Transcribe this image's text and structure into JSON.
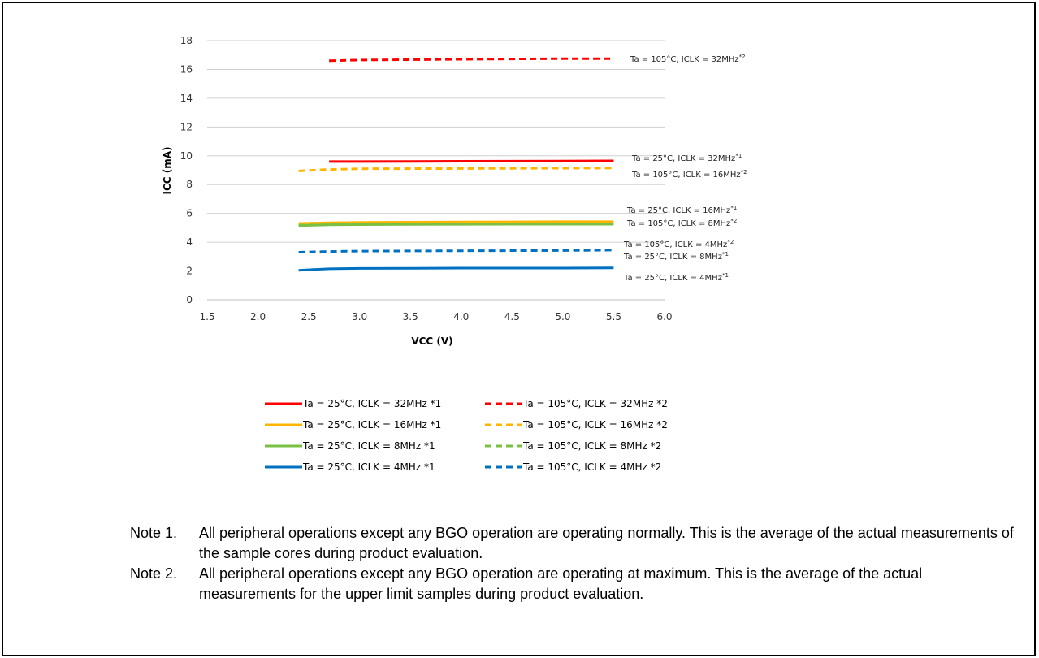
{
  "chart_data": {
    "type": "line",
    "title": "",
    "xlabel": "VCC (V)",
    "ylabel": "ICC (mA)",
    "xlim": [
      1.5,
      6.0
    ],
    "ylim": [
      0,
      18
    ],
    "xticks": [
      "1.5",
      "2.0",
      "2.5",
      "3.0",
      "3.5",
      "4.0",
      "4.5",
      "5.0",
      "5.5",
      "6.0"
    ],
    "yticks": [
      "0",
      "2",
      "4",
      "6",
      "8",
      "10",
      "12",
      "14",
      "16",
      "18"
    ],
    "grid": "horizontal",
    "legend_position": "bottom",
    "series": [
      {
        "name": "Ta = 25°C, ICLK = 32MHz *1",
        "color": "#ff0000",
        "dash": false,
        "x": [
          2.7,
          3.0,
          4.0,
          5.0,
          5.5
        ],
        "y": [
          9.6,
          9.6,
          9.62,
          9.64,
          9.65
        ]
      },
      {
        "name": "Ta = 105°C, ICLK = 32MHz *2",
        "color": "#ff0000",
        "dash": true,
        "x": [
          2.7,
          3.0,
          4.0,
          5.0,
          5.5
        ],
        "y": [
          16.6,
          16.65,
          16.7,
          16.75,
          16.75
        ]
      },
      {
        "name": "Ta = 25°C, ICLK = 16MHz *1",
        "color": "#ffb400",
        "dash": false,
        "x": [
          2.4,
          2.7,
          3.0,
          4.0,
          5.0,
          5.5
        ],
        "y": [
          5.3,
          5.35,
          5.38,
          5.4,
          5.42,
          5.42
        ]
      },
      {
        "name": "Ta = 105°C, ICLK = 16MHz *2",
        "color": "#ffb400",
        "dash": true,
        "x": [
          2.4,
          2.7,
          3.0,
          4.0,
          5.0,
          5.5
        ],
        "y": [
          8.95,
          9.05,
          9.1,
          9.12,
          9.14,
          9.15
        ]
      },
      {
        "name": "Ta = 25°C, ICLK = 8MHz *1",
        "color": "#7ac143",
        "dash": false,
        "x": [
          2.4,
          2.7,
          3.0,
          4.0,
          5.0,
          5.5
        ],
        "y": [
          5.15,
          5.2,
          5.22,
          5.24,
          5.25,
          5.25
        ]
      },
      {
        "name": "Ta = 105°C, ICLK = 8MHz *2",
        "color": "#7ac143",
        "dash": true,
        "x": [
          2.4,
          2.7,
          3.0,
          4.0,
          5.0,
          5.5
        ],
        "y": [
          5.18,
          5.22,
          5.25,
          5.27,
          5.28,
          5.28
        ]
      },
      {
        "name": "Ta = 25°C, ICLK = 4MHz *1",
        "color": "#0070c0",
        "dash": false,
        "x": [
          2.4,
          2.7,
          3.0,
          4.0,
          5.0,
          5.5
        ],
        "y": [
          2.05,
          2.15,
          2.18,
          2.2,
          2.2,
          2.22
        ]
      },
      {
        "name": "Ta = 105°C, ICLK = 4MHz *2",
        "color": "#0070c0",
        "dash": true,
        "x": [
          2.4,
          2.7,
          3.0,
          4.0,
          5.0,
          5.5
        ],
        "y": [
          3.3,
          3.35,
          3.38,
          3.4,
          3.42,
          3.45
        ]
      }
    ],
    "annotations": [
      {
        "text": "Ta = 105°C, ICLK = 32MHz",
        "sup": "*2",
        "y": 16.75
      },
      {
        "text": "Ta = 25°C, ICLK = 32MHz",
        "sup": "*1",
        "y": 9.65
      },
      {
        "text": "Ta = 105°C, ICLK = 16MHz",
        "sup": "*2",
        "y": 9.15
      },
      {
        "text": "Ta = 25°C, ICLK = 16MHz",
        "sup": "*1",
        "y": 5.42
      },
      {
        "text": "Ta = 105°C, ICLK = 8MHz",
        "sup": "*2",
        "y": 5.28
      },
      {
        "text": "Ta = 105°C, ICLK = 4MHz",
        "sup": "*2",
        "y": 3.45
      },
      {
        "text": "Ta = 25°C, ICLK = 8MHz",
        "sup": "*1",
        "y": 5.25
      },
      {
        "text": "Ta = 25°C, ICLK = 4MHz",
        "sup": "*1",
        "y": 2.22
      }
    ]
  },
  "notes": [
    {
      "label": "Note 1.",
      "text": "All peripheral operations except any BGO operation are operating normally. This is the average of the actual measurements of the sample cores during product evaluation."
    },
    {
      "label": "Note 2.",
      "text": "All peripheral operations except any BGO operation are operating at maximum. This is the average of the actual measurements for the upper limit samples during product evaluation."
    }
  ]
}
